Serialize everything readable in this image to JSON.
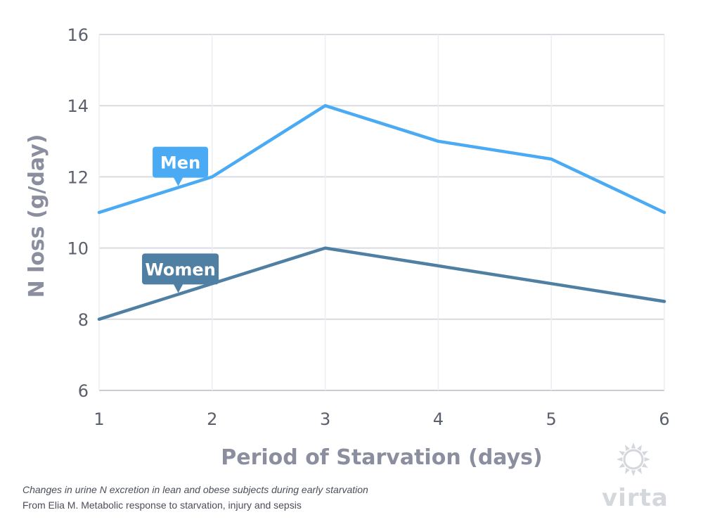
{
  "chart_data": {
    "type": "line",
    "xlabel": "Period of Starvation (days)",
    "ylabel": "N loss (g/day)",
    "x": [
      1,
      2,
      3,
      4,
      5,
      6
    ],
    "xticks": [
      "1",
      "2",
      "3",
      "4",
      "5",
      "6"
    ],
    "yticks": [
      "6",
      "8",
      "10",
      "12",
      "14",
      "16"
    ],
    "ylim": [
      6,
      16
    ],
    "xlim": [
      1,
      6
    ],
    "grid": true,
    "series": [
      {
        "name": "Men",
        "values": [
          11,
          12,
          14,
          13,
          12.5,
          11
        ],
        "color": "#4aabf4",
        "label_at": 1.7
      },
      {
        "name": "Women",
        "values": [
          8,
          9,
          10,
          9.5,
          9,
          8.5
        ],
        "color": "#4f7fa3",
        "label_at": 1.7
      }
    ]
  },
  "caption": {
    "line1": "Changes in urine N excretion in lean and obese subjects during early starvation",
    "line2": "From Elia M. Metabolic response to starvation, injury and sepsis"
  },
  "logo": {
    "text": "virta",
    "icon": "sun-icon",
    "color": "#d4d7dc"
  },
  "colors": {
    "grid": "#d9dbe0",
    "axis": "#c9ccd2"
  }
}
